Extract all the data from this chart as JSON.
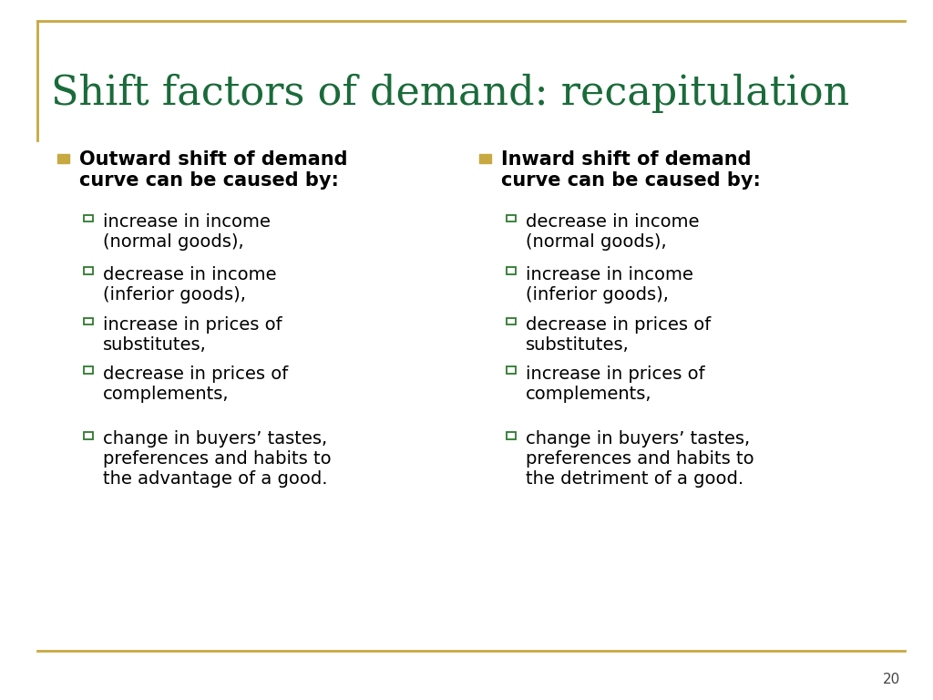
{
  "title": "Shift factors of demand: recapitulation",
  "title_color": "#1a6b3a",
  "title_fontsize": 32,
  "background_color": "#ffffff",
  "border_color": "#c8a840",
  "page_number": "20",
  "bullet_color": "#c8a840",
  "sub_bullet_color": "#2d7a2d",
  "text_color": "#000000",
  "heading_color": "#000000",
  "left_column": {
    "heading": "Outward shift of demand\ncurve can be caused by:",
    "items": [
      "increase in income\n(normal goods),",
      "decrease in income\n(inferior goods),",
      "increase in prices of\nsubstitutes,",
      "decrease in prices of\ncomplements,",
      "change in buyers’ tastes,\npreferences and habits to\nthe advantage of a good."
    ]
  },
  "right_column": {
    "heading": "Inward shift of demand\ncurve can be caused by:",
    "items": [
      "decrease in income\n(normal goods),",
      "increase in income\n(inferior goods),",
      "decrease in prices of\nsubstitutes,",
      "increase in prices of\ncomplements,",
      "change in buyers’ tastes,\npreferences and habits to\nthe detriment of a good."
    ]
  }
}
